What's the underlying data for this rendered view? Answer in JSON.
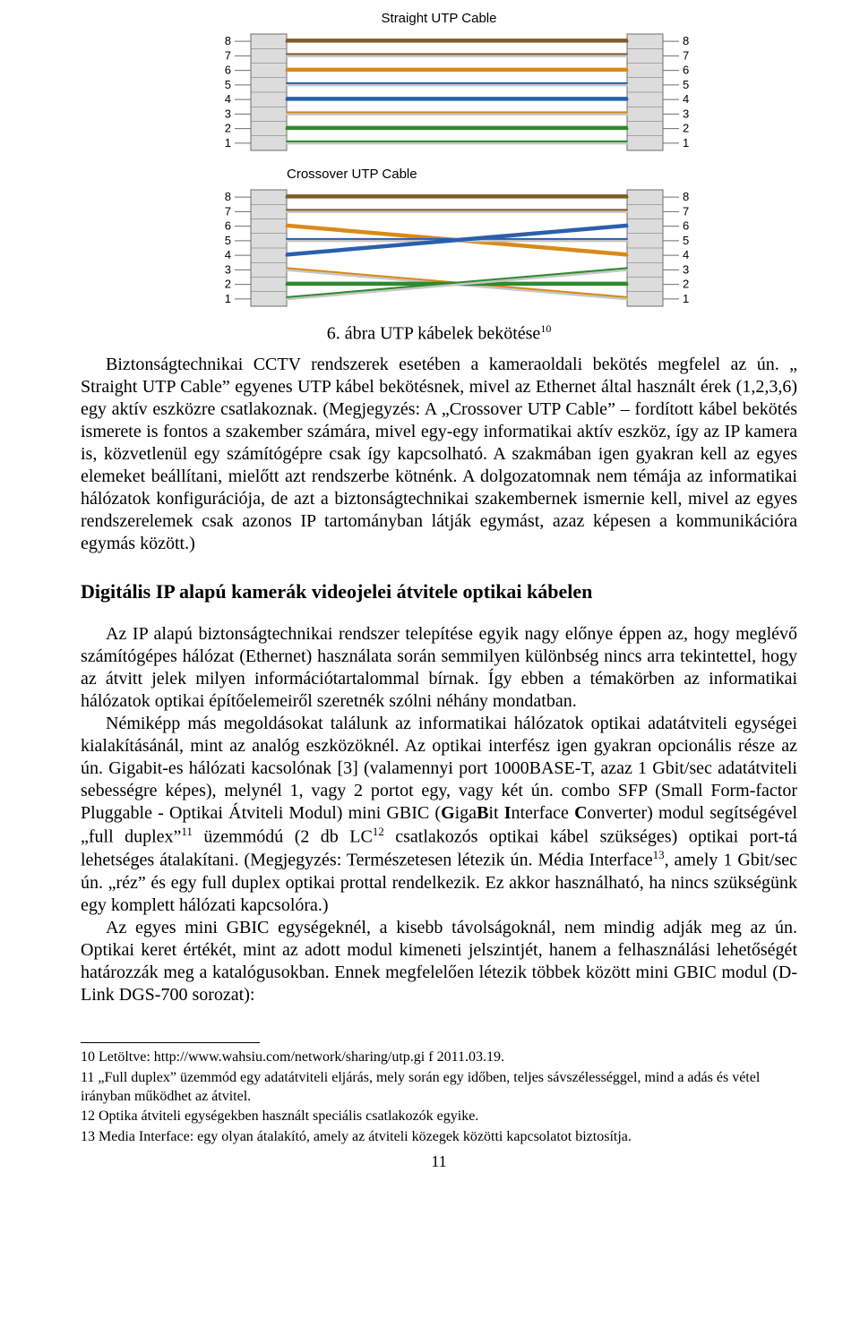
{
  "diagrams": {
    "straight": {
      "title": "Straight UTP Cable",
      "pins_left": [
        "8",
        "7",
        "6",
        "5",
        "4",
        "3",
        "2",
        "1"
      ],
      "pins_right": [
        "8",
        "7",
        "6",
        "5",
        "4",
        "3",
        "2",
        "1"
      ],
      "wires": [
        {
          "from": 0,
          "to": 0,
          "stripe": "#805a2a",
          "main": "#805a2a"
        },
        {
          "from": 1,
          "to": 1,
          "stripe": "#805a2a",
          "main": "#c7c6c4"
        },
        {
          "from": 2,
          "to": 2,
          "stripe": "#d98a17",
          "main": "#d98a17"
        },
        {
          "from": 3,
          "to": 3,
          "stripe": "#2b5fae",
          "main": "#c7c6c4"
        },
        {
          "from": 4,
          "to": 4,
          "stripe": "#2b5fae",
          "main": "#2b5fae"
        },
        {
          "from": 5,
          "to": 5,
          "stripe": "#d98a17",
          "main": "#c7c6c4"
        },
        {
          "from": 6,
          "to": 6,
          "stripe": "#2f8a2f",
          "main": "#2f8a2f"
        },
        {
          "from": 7,
          "to": 7,
          "stripe": "#2f8a2f",
          "main": "#c7c6c4"
        }
      ],
      "font_family": "Arial, sans-serif",
      "label_fontsize": 13,
      "label_color": "#000000",
      "connector_fill": "#dcdcdc",
      "connector_stroke": "#6d6d6d",
      "guide_color": "#6d6d6d",
      "wire_width": 3,
      "stripe_width": 2
    },
    "crossover": {
      "title": "Crossover UTP Cable",
      "pins_left": [
        "8",
        "7",
        "6",
        "5",
        "4",
        "3",
        "2",
        "1"
      ],
      "pins_right": [
        "8",
        "7",
        "6",
        "5",
        "4",
        "3",
        "2",
        "1"
      ],
      "wires": [
        {
          "from": 0,
          "to": 0,
          "stripe": "#805a2a",
          "main": "#805a2a"
        },
        {
          "from": 1,
          "to": 1,
          "stripe": "#805a2a",
          "main": "#c7c6c4"
        },
        {
          "from": 2,
          "to": 4,
          "stripe": "#d98a17",
          "main": "#d98a17"
        },
        {
          "from": 3,
          "to": 3,
          "stripe": "#2b5fae",
          "main": "#c7c6c4"
        },
        {
          "from": 4,
          "to": 2,
          "stripe": "#2b5fae",
          "main": "#2b5fae"
        },
        {
          "from": 5,
          "to": 7,
          "stripe": "#d98a17",
          "main": "#c7c6c4"
        },
        {
          "from": 6,
          "to": 6,
          "stripe": "#2f8a2f",
          "main": "#2f8a2f"
        },
        {
          "from": 7,
          "to": 5,
          "stripe": "#2f8a2f",
          "main": "#c7c6c4"
        }
      ],
      "font_family": "Arial, sans-serif",
      "label_fontsize": 13,
      "label_color": "#000000",
      "connector_fill": "#dcdcdc",
      "connector_stroke": "#6d6d6d",
      "guide_color": "#6d6d6d",
      "wire_width": 3,
      "stripe_width": 2
    }
  },
  "caption": {
    "text": "6. ábra UTP kábelek bekötése",
    "sup": "10"
  },
  "para1": "Biztonságtechnikai CCTV rendszerek esetében a kameraoldali bekötés megfelel az ún. „ Straight UTP Cable” egyenes UTP kábel bekötésnek, mivel az Ethernet által használt érek (1,2,3,6) egy aktív eszközre csatlakoznak. (Megjegyzés: A „Crossover UTP Cable” – fordított kábel bekötés ismerete is fontos a szakember számára, mivel egy-egy informatikai aktív eszköz, így az IP kamera is, közvetlenül egy számítógépre csak így kapcsolható. A szakmában igen gyakran kell az egyes elemeket beállítani, mielőtt azt rendszerbe kötnénk. A dolgozatomnak nem témája az informatikai hálózatok konfigurációja, de azt a biztonságtechnikai szakembernek ismernie kell, mivel az egyes rendszerelemek csak azonos IP tartományban látják egymást, azaz képesen a kommunikációra egymás között.)",
  "section_heading": "Digitális IP alapú kamerák videojelei átvitele optikai kábelen",
  "para2": "Az IP alapú biztonságtechnikai rendszer telepítése egyik nagy előnye éppen az, hogy meglévő számítógépes hálózat (Ethernet) használata során semmilyen különbség nincs arra tekintettel, hogy az átvitt jelek milyen információtartalommal bírnak. Így ebben a témakörben az informatikai hálózatok optikai építőelemeiről szeretnék szólni néhány mondatban.",
  "para3_pre": "Némiképp más megoldásokat találunk az informatikai hálózatok optikai adatátviteli egységei kialakításánál, mint az analóg eszközöknél. Az optikai interfész igen gyakran opcionális része az ún.  Gigabit-es hálózati kacsolónak [3] (valamennyi port 1000BASE-T, azaz 1 Gbit/sec adatátviteli sebességre képes), melynél 1, vagy 2 portot egy, vagy két ún.  combo SFP (Small Form-factor Pluggable - Optikai Átviteli Modul) mini GBIC (",
  "para3_giga": "G",
  "para3_iga": "iga",
  "para3_b": "B",
  "para3_it": "it ",
  "para3_i": "I",
  "para3_nterface": "nterface ",
  "para3_c": "C",
  "para3_onverter_post": "onverter) modul segítségével „full duplex”",
  "sup11": "11",
  "para3_mid": " üzemmódú (2 db LC",
  "sup12": "12",
  "para3_mid2": " csatlakozós optikai kábel szükséges) optikai port-tá lehetséges átalakítani. (Megjegyzés: Természetesen létezik ún.  Média Interface",
  "sup13": "13",
  "para3_end": ", amely 1 Gbit/sec ún.  „réz” és egy full duplex optikai prottal rendelkezik. Ez akkor használható, ha nincs szükségünk egy komplett hálózati kapcsolóra.)",
  "para4": "Az egyes mini GBIC egységeknél, a kisebb távolságoknál, nem mindig adják meg az ún. Optikai keret értékét, mint az adott modul kimeneti jelszintjét, hanem a felhasználási lehetőségét határozzák meg a katalógusokban. Ennek megfelelően létezik többek között mini GBIC modul (D-Link DGS-700 sorozat):",
  "footnotes": {
    "f10": "10 Letöltve: http://www.wahsiu.com/network/sharing/utp.gi f 2011.03.19.",
    "f11": "11 „Full duplex” üzemmód egy adatátviteli eljárás, mely során egy időben, teljes sávszélességgel, mind a adás és vétel irányban működhet az átvitel.",
    "f12": "12 Optika átviteli egységekben használt speciális csatlakozók egyike.",
    "f13": "13 Media Interface: egy olyan átalakító, amely az átviteli közegek közötti kapcsolatot biztosítja."
  },
  "page_number": "11"
}
